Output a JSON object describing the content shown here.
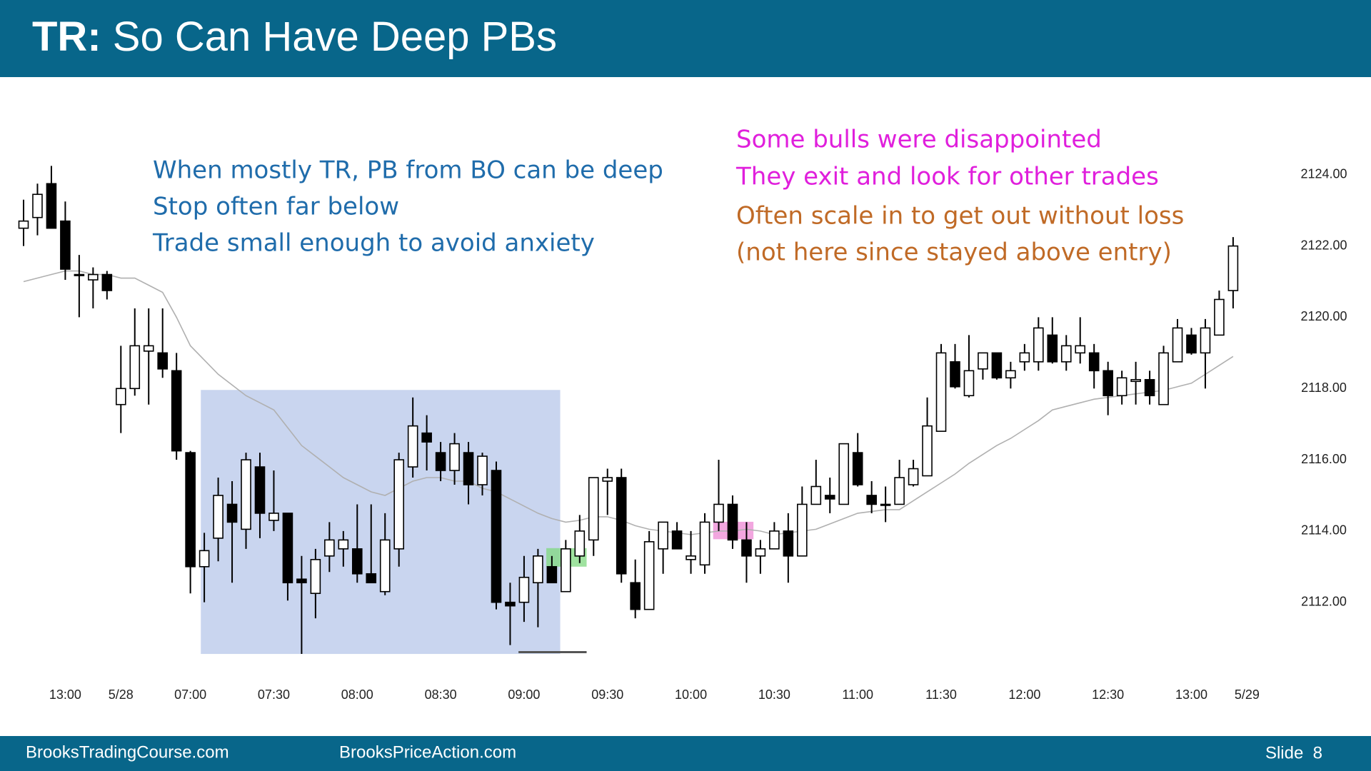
{
  "header": {
    "title_prefix": "TR:",
    "title": "So Can Have Deep PBs"
  },
  "footer": {
    "left": "BrooksTradingCourse.com",
    "center": "BrooksPriceAction.com",
    "slide": "Slide  8"
  },
  "chart_data": {
    "type": "candlestick",
    "annotations_blue": [
      "When mostly TR, PB from BO can be deep",
      "Stop often far below",
      "Trade small enough to avoid anxiety"
    ],
    "annotations_magenta": [
      "Some bulls were disappointed",
      "They exit and look for other trades"
    ],
    "annotations_orange": [
      "Often scale in to get out without loss",
      "(not here since stayed above entry)"
    ],
    "categories": [
      null,
      null,
      null,
      "13:00",
      null,
      null,
      null,
      "5/28",
      null,
      null,
      null,
      null,
      "07:00",
      null,
      null,
      null,
      null,
      null,
      "07:30",
      null,
      null,
      null,
      null,
      null,
      "08:00",
      null,
      null,
      null,
      null,
      null,
      "08:30",
      null,
      null,
      null,
      null,
      null,
      "09:00",
      null,
      null,
      null,
      null,
      null,
      "09:30",
      null,
      null,
      null,
      null,
      null,
      "10:00",
      null,
      null,
      null,
      null,
      null,
      "10:30",
      null,
      null,
      null,
      null,
      null,
      "11:00",
      null,
      null,
      null,
      null,
      null,
      "11:30",
      null,
      null,
      null,
      null,
      null,
      "12:00",
      null,
      null,
      null,
      null,
      null,
      "12:30",
      null,
      null,
      null,
      null,
      null,
      "13:00",
      null,
      null,
      null,
      "5/29"
    ],
    "open": [
      2122.5,
      2122.8,
      2123.75,
      2122.7,
      2121.2,
      2121.05,
      2121.2,
      2117.55,
      2118.0,
      2119.05,
      2119.0,
      2118.5,
      2116.2,
      2113.0,
      2113.8,
      2114.75,
      2114.05,
      2115.8,
      2114.3,
      2114.5,
      2112.65,
      2112.25,
      2113.3,
      2113.5,
      2113.5,
      2112.8,
      2112.3,
      2113.5,
      2115.8,
      2116.75,
      2116.2,
      2115.7,
      2116.2,
      2115.3,
      2115.7,
      2112.0,
      2112.0,
      2112.55,
      2113.0,
      2112.3,
      2113.3,
      2113.75,
      2115.4,
      2115.5,
      2112.55,
      2111.8,
      2113.5,
      2114.0,
      2113.2,
      2113.05,
      2114.25,
      2114.75,
      2113.75,
      2113.3,
      2113.5,
      2114.0,
      2113.3,
      2114.75,
      2115.0,
      2114.75,
      2116.2,
      2115.0,
      2114.75,
      2114.75,
      2115.3,
      2115.55,
      2116.8,
      2118.75,
      2117.8,
      2118.55,
      2119.0,
      2118.3,
      2118.75,
      2118.75,
      2119.5,
      2118.75,
      2119.0,
      2119.0,
      2118.5,
      2117.8,
      2118.2,
      2118.25,
      2117.55,
      2118.75,
      2119.5,
      2119.0,
      2119.5,
      2120.75,
      null
    ],
    "high": [
      2123.3,
      2123.75,
      2124.25,
      2123.25,
      2121.75,
      2121.4,
      2121.3,
      2119.2,
      2120.25,
      2120.25,
      2120.25,
      2119.0,
      2116.25,
      2113.95,
      2115.5,
      2115.4,
      2116.2,
      2116.2,
      2115.7,
      2114.5,
      2113.3,
      2113.5,
      2114.25,
      2114.0,
      2114.75,
      2114.75,
      2114.5,
      2116.2,
      2117.75,
      2117.25,
      2116.5,
      2116.75,
      2116.5,
      2116.2,
      2115.95,
      2112.55,
      2113.3,
      2113.5,
      2113.3,
      2113.75,
      2114.45,
      2115.5,
      2115.75,
      2115.75,
      2113.2,
      2114.0,
      2114.25,
      2114.25,
      2114.0,
      2114.5,
      2116.0,
      2115.0,
      2114.25,
      2113.75,
      2114.25,
      2114.5,
      2115.25,
      2116.0,
      2115.5,
      2116.45,
      2116.75,
      2115.4,
      2115.25,
      2116.0,
      2116.0,
      2117.75,
      2119.25,
      2119.25,
      2119.5,
      2119.0,
      2119.0,
      2118.75,
      2119.25,
      2120.0,
      2120.0,
      2119.5,
      2120.0,
      2119.25,
      2118.75,
      2118.5,
      2118.75,
      2118.5,
      2119.2,
      2119.95,
      2119.7,
      2119.95,
      2120.75,
      2122.25,
      null
    ],
    "low": [
      2122.0,
      2122.3,
      2122.5,
      2121.05,
      2120.0,
      2120.25,
      2120.5,
      2116.75,
      2117.8,
      2117.55,
      2118.3,
      2116.0,
      2112.25,
      2112.0,
      2113.15,
      2112.55,
      2113.5,
      2113.8,
      2114.0,
      2112.05,
      2110.55,
      2111.55,
      2112.85,
      2113.0,
      2112.55,
      2112.55,
      2112.2,
      2113.0,
      2115.5,
      2115.7,
      2115.4,
      2115.3,
      2114.75,
      2115.0,
      2111.8,
      2110.8,
      2111.45,
      2111.3,
      2112.55,
      2112.3,
      2113.1,
      2113.3,
      2114.45,
      2112.55,
      2111.55,
      2111.8,
      2112.8,
      2113.5,
      2112.8,
      2112.8,
      2114.0,
      2113.5,
      2112.55,
      2112.8,
      2113.5,
      2112.55,
      2113.3,
      2114.75,
      2114.5,
      2114.75,
      2115.25,
      2114.5,
      2114.25,
      2114.75,
      2115.25,
      2115.55,
      2116.8,
      2118.0,
      2117.75,
      2118.25,
      2118.25,
      2118.0,
      2118.5,
      2118.5,
      2118.7,
      2118.5,
      2118.7,
      2118.0,
      2117.25,
      2117.55,
      2117.55,
      2117.55,
      2117.55,
      2118.75,
      2118.95,
      2118.0,
      2119.5,
      2120.25,
      null
    ],
    "close": [
      2122.7,
      2123.45,
      2122.5,
      2121.35,
      2121.2,
      2121.2,
      2120.75,
      2118.0,
      2119.2,
      2119.2,
      2118.55,
      2116.25,
      2113.0,
      2113.45,
      2115.0,
      2114.25,
      2116.0,
      2114.5,
      2114.5,
      2112.55,
      2112.55,
      2113.2,
      2113.75,
      2113.75,
      2112.8,
      2112.55,
      2113.75,
      2116.0,
      2116.95,
      2116.5,
      2115.7,
      2116.45,
      2115.3,
      2116.1,
      2112.0,
      2111.9,
      2112.7,
      2113.3,
      2112.55,
      2113.5,
      2114.0,
      2115.5,
      2115.5,
      2112.8,
      2111.8,
      2113.7,
      2114.25,
      2113.5,
      2113.3,
      2114.25,
      2114.75,
      2113.75,
      2113.3,
      2113.5,
      2114.0,
      2113.3,
      2114.75,
      2115.25,
      2114.9,
      2116.45,
      2115.3,
      2114.75,
      2114.75,
      2115.5,
      2115.75,
      2116.95,
      2119.0,
      2118.05,
      2118.5,
      2119.0,
      2118.3,
      2118.5,
      2119.0,
      2119.7,
      2118.75,
      2119.2,
      2119.2,
      2118.5,
      2117.8,
      2118.3,
      2118.25,
      2117.8,
      2119.0,
      2119.7,
      2119.0,
      2119.7,
      2120.5,
      2122.0,
      null
    ],
    "moving_average": {
      "color": "#b0b0b0",
      "values": [
        2121.0,
        2121.1,
        2121.2,
        2121.3,
        2121.3,
        2121.2,
        2121.2,
        2121.1,
        2121.1,
        2120.9,
        2120.7,
        2120.0,
        2119.2,
        2118.8,
        2118.4,
        2118.1,
        2117.8,
        2117.6,
        2117.4,
        2116.9,
        2116.4,
        2116.1,
        2115.8,
        2115.5,
        2115.3,
        2115.1,
        2115.0,
        2115.2,
        2115.4,
        2115.5,
        2115.5,
        2115.4,
        2115.4,
        2115.2,
        2115.1,
        2114.9,
        2114.7,
        2114.5,
        2114.35,
        2114.25,
        2114.3,
        2114.4,
        2114.4,
        2114.3,
        2114.15,
        2114.05,
        2114.0,
        2113.95,
        2113.9,
        2113.95,
        2114.0,
        2114.0,
        2114.05,
        2114.0,
        2113.9,
        2113.95,
        2114.0,
        2114.05,
        2114.2,
        2114.35,
        2114.5,
        2114.55,
        2114.6,
        2114.6,
        2114.85,
        2115.1,
        2115.35,
        2115.6,
        2115.9,
        2116.15,
        2116.4,
        2116.6,
        2116.85,
        2117.1,
        2117.4,
        2117.5,
        2117.6,
        2117.7,
        2117.75,
        2117.8,
        2117.85,
        2117.9,
        2117.95,
        2118.05,
        2118.15,
        2118.4,
        2118.65,
        2118.9,
        null
      ]
    },
    "highlights": [
      {
        "color": "#c9d5ef",
        "x": [
          12.75,
          38.6
        ],
        "y": [
          2110.55,
          2117.96
        ]
      },
      {
        "color": "#7fd87f",
        "x": [
          37.6,
          40.5
        ],
        "y": [
          2113.0,
          2113.52
        ]
      },
      {
        "color": "#ee88d4",
        "x": [
          49.6,
          52.5
        ],
        "y": [
          2113.77,
          2114.26
        ]
      }
    ],
    "level_line": {
      "color": "#555555",
      "x": [
        35.6,
        40.5
      ],
      "value": 2110.6
    },
    "up_color": "#ffffff",
    "down_color": "#000000",
    "ylim": [
      2110.0,
      2126.2
    ],
    "yticks": [
      {
        "value": 2112,
        "label": "2112.00"
      },
      {
        "value": 2114,
        "label": "2114.00"
      },
      {
        "value": 2116,
        "label": "2116.00"
      },
      {
        "value": 2118,
        "label": "2118.00"
      },
      {
        "value": 2120,
        "label": "2120.00"
      },
      {
        "value": 2122,
        "label": "2122.00"
      },
      {
        "value": 2124,
        "label": "2124.00"
      }
    ]
  }
}
